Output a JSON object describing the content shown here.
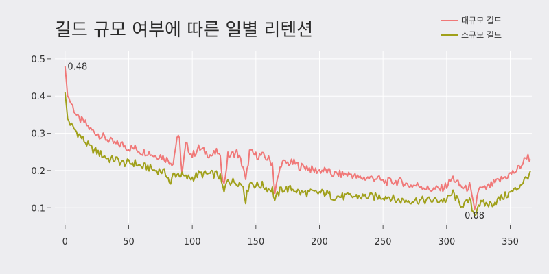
{
  "chart_data": {
    "type": "line",
    "title": "길드 규모 여부에 따른 일별 리텐션",
    "xlabel": "",
    "ylabel": "",
    "xlim": [
      -8,
      367
    ],
    "ylim": [
      0.06,
      0.52
    ],
    "x_ticks": [
      0,
      50,
      100,
      150,
      200,
      250,
      300,
      350
    ],
    "y_ticks": [
      0.1,
      0.2,
      0.3,
      0.4,
      0.5
    ],
    "grid": true,
    "legend_position": "top-right",
    "series": [
      {
        "name": "대규모 길드",
        "color": "#f07878",
        "points": [
          [
            0,
            0.48
          ],
          [
            2,
            0.4
          ],
          [
            5,
            0.38
          ],
          [
            10,
            0.34
          ],
          [
            15,
            0.33
          ],
          [
            20,
            0.31
          ],
          [
            25,
            0.3
          ],
          [
            30,
            0.29
          ],
          [
            35,
            0.28
          ],
          [
            40,
            0.27
          ],
          [
            45,
            0.27
          ],
          [
            50,
            0.26
          ],
          [
            55,
            0.26
          ],
          [
            60,
            0.25
          ],
          [
            65,
            0.25
          ],
          [
            70,
            0.24
          ],
          [
            75,
            0.24
          ],
          [
            80,
            0.23
          ],
          [
            85,
            0.22
          ],
          [
            88,
            0.29
          ],
          [
            90,
            0.28
          ],
          [
            92,
            0.19
          ],
          [
            95,
            0.27
          ],
          [
            100,
            0.24
          ],
          [
            105,
            0.26
          ],
          [
            110,
            0.25
          ],
          [
            115,
            0.24
          ],
          [
            120,
            0.25
          ],
          [
            122,
            0.23
          ],
          [
            125,
            0.16
          ],
          [
            128,
            0.24
          ],
          [
            130,
            0.24
          ],
          [
            135,
            0.25
          ],
          [
            140,
            0.21
          ],
          [
            142,
            0.17
          ],
          [
            145,
            0.25
          ],
          [
            150,
            0.24
          ],
          [
            155,
            0.24
          ],
          [
            160,
            0.23
          ],
          [
            163,
            0.22
          ],
          [
            165,
            0.14
          ],
          [
            168,
            0.19
          ],
          [
            170,
            0.22
          ],
          [
            175,
            0.22
          ],
          [
            180,
            0.22
          ],
          [
            185,
            0.21
          ],
          [
            190,
            0.21
          ],
          [
            195,
            0.2
          ],
          [
            200,
            0.2
          ],
          [
            205,
            0.2
          ],
          [
            210,
            0.19
          ],
          [
            215,
            0.19
          ],
          [
            220,
            0.19
          ],
          [
            225,
            0.19
          ],
          [
            230,
            0.18
          ],
          [
            235,
            0.18
          ],
          [
            240,
            0.18
          ],
          [
            245,
            0.18
          ],
          [
            250,
            0.17
          ],
          [
            255,
            0.17
          ],
          [
            260,
            0.17
          ],
          [
            265,
            0.17
          ],
          [
            270,
            0.16
          ],
          [
            275,
            0.16
          ],
          [
            280,
            0.16
          ],
          [
            285,
            0.15
          ],
          [
            290,
            0.15
          ],
          [
            295,
            0.15
          ],
          [
            300,
            0.16
          ],
          [
            305,
            0.18
          ],
          [
            310,
            0.16
          ],
          [
            315,
            0.15
          ],
          [
            318,
            0.16
          ],
          [
            322,
            0.09
          ],
          [
            325,
            0.15
          ],
          [
            330,
            0.15
          ],
          [
            335,
            0.16
          ],
          [
            340,
            0.17
          ],
          [
            345,
            0.18
          ],
          [
            350,
            0.19
          ],
          [
            355,
            0.2
          ],
          [
            360,
            0.22
          ],
          [
            363,
            0.24
          ],
          [
            366,
            0.23
          ]
        ]
      },
      {
        "name": "소규모 길드",
        "color": "#a0a01a",
        "points": [
          [
            0,
            0.41
          ],
          [
            2,
            0.34
          ],
          [
            5,
            0.32
          ],
          [
            10,
            0.3
          ],
          [
            15,
            0.28
          ],
          [
            20,
            0.26
          ],
          [
            25,
            0.25
          ],
          [
            30,
            0.24
          ],
          [
            35,
            0.23
          ],
          [
            40,
            0.23
          ],
          [
            45,
            0.22
          ],
          [
            50,
            0.22
          ],
          [
            55,
            0.22
          ],
          [
            60,
            0.21
          ],
          [
            65,
            0.21
          ],
          [
            70,
            0.2
          ],
          [
            75,
            0.2
          ],
          [
            80,
            0.19
          ],
          [
            83,
            0.16
          ],
          [
            85,
            0.19
          ],
          [
            90,
            0.19
          ],
          [
            95,
            0.18
          ],
          [
            100,
            0.18
          ],
          [
            105,
            0.19
          ],
          [
            110,
            0.19
          ],
          [
            115,
            0.19
          ],
          [
            120,
            0.19
          ],
          [
            122,
            0.18
          ],
          [
            125,
            0.14
          ],
          [
            128,
            0.18
          ],
          [
            130,
            0.17
          ],
          [
            135,
            0.17
          ],
          [
            140,
            0.16
          ],
          [
            142,
            0.12
          ],
          [
            145,
            0.17
          ],
          [
            150,
            0.16
          ],
          [
            155,
            0.16
          ],
          [
            160,
            0.15
          ],
          [
            163,
            0.15
          ],
          [
            165,
            0.12
          ],
          [
            168,
            0.14
          ],
          [
            170,
            0.15
          ],
          [
            175,
            0.15
          ],
          [
            180,
            0.15
          ],
          [
            185,
            0.14
          ],
          [
            190,
            0.14
          ],
          [
            195,
            0.14
          ],
          [
            200,
            0.14
          ],
          [
            205,
            0.14
          ],
          [
            210,
            0.13
          ],
          [
            215,
            0.13
          ],
          [
            220,
            0.13
          ],
          [
            225,
            0.13
          ],
          [
            230,
            0.13
          ],
          [
            235,
            0.13
          ],
          [
            240,
            0.13
          ],
          [
            245,
            0.13
          ],
          [
            250,
            0.13
          ],
          [
            255,
            0.13
          ],
          [
            260,
            0.12
          ],
          [
            265,
            0.12
          ],
          [
            270,
            0.12
          ],
          [
            275,
            0.12
          ],
          [
            280,
            0.12
          ],
          [
            285,
            0.12
          ],
          [
            290,
            0.12
          ],
          [
            295,
            0.12
          ],
          [
            300,
            0.12
          ],
          [
            305,
            0.14
          ],
          [
            310,
            0.11
          ],
          [
            315,
            0.11
          ],
          [
            318,
            0.12
          ],
          [
            322,
            0.08
          ],
          [
            325,
            0.11
          ],
          [
            330,
            0.11
          ],
          [
            335,
            0.11
          ],
          [
            340,
            0.12
          ],
          [
            345,
            0.13
          ],
          [
            350,
            0.14
          ],
          [
            355,
            0.15
          ],
          [
            360,
            0.17
          ],
          [
            363,
            0.18
          ],
          [
            366,
            0.2
          ]
        ]
      }
    ],
    "annotations": [
      {
        "text": "0.48",
        "x": 0,
        "y": 0.48
      },
      {
        "text": "0.08",
        "x": 322,
        "y": 0.08
      }
    ]
  }
}
